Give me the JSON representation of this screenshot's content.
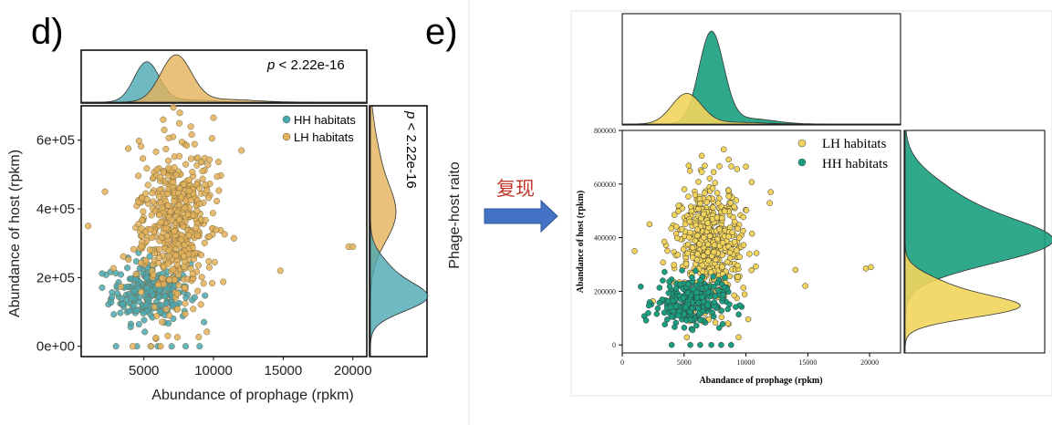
{
  "panels": {
    "d": {
      "label": "d)",
      "top_pvalue": {
        "italic": "p",
        "rest": " < 2.22e-16"
      },
      "right_pvalue": {
        "italic": "p",
        "rest": " < 2.22e-16"
      },
      "legend": [
        "HH habitats",
        "LH habitats"
      ],
      "xlabel": "Abundance of prophage (rpkm)",
      "ylabel": "Abundance of host (rpkm)",
      "xticks": [
        "5000",
        "10000",
        "15000",
        "20000"
      ],
      "yticks": [
        "0e+00",
        "2e+05",
        "4e+05",
        "6e+05"
      ],
      "side_label": "Phage-host raito"
    },
    "e": {
      "label": "e)",
      "legend": [
        "LH habitats",
        "HH habitats"
      ],
      "xlabel": "Abandance of prophage (rpkm)",
      "ylabel": "Abandance of host (rpkm)",
      "xticks": [
        "0",
        "5000",
        "10000",
        "15000",
        "20000"
      ],
      "yticks": [
        "0",
        "200000",
        "400000",
        "600000",
        "800000"
      ]
    }
  },
  "arrow": {
    "label": "复现",
    "color": "#4472c4"
  },
  "colors": {
    "d_hh": "#4aa8b3",
    "d_lh": "#e3b25a",
    "e_hh": "#1a9e7f",
    "e_lh": "#f2d45c",
    "arrow_text": "#c0392b"
  },
  "chart_data": [
    {
      "type": "scatter",
      "panel": "d",
      "xlabel": "Abundance of prophage (rpkm)",
      "ylabel": "Abundance of host (rpkm)",
      "xlim": [
        500,
        21000
      ],
      "ylim": [
        -30000,
        700000
      ],
      "series": [
        {
          "name": "HH habitats",
          "cluster": {
            "x_center": 5500,
            "x_sd": 1400,
            "y_center": 160000,
            "y_sd": 45000,
            "n": 260
          },
          "points_extra": [
            [
              3000,
              0
            ],
            [
              4500,
              0
            ],
            [
              5500,
              0
            ],
            [
              6000,
              0
            ],
            [
              7000,
              0
            ],
            [
              8000,
              0
            ],
            [
              9000,
              0
            ]
          ]
        },
        {
          "name": "LH habitats",
          "cluster": {
            "x_center": 7200,
            "x_sd": 1300,
            "y_center": 360000,
            "y_sd": 120000,
            "n": 520
          },
          "points_extra": [
            [
              19700,
              290000
            ],
            [
              20000,
              290000
            ],
            [
              14800,
              220000
            ],
            [
              1000,
              350000
            ],
            [
              2200,
              450000
            ],
            [
              12000,
              570000
            ],
            [
              10000,
              665000
            ],
            [
              5500,
              0
            ],
            [
              6200,
              0
            ],
            [
              4200,
              0
            ]
          ]
        }
      ],
      "marginal_x": {
        "HH habitats": {
          "peak": 5200,
          "sd": 900
        },
        "LH habitats": {
          "peak": 7300,
          "sd": 1100
        }
      },
      "marginal_y": {
        "HH habitats": {
          "peak": 140000,
          "sd": 40000
        },
        "LH habitats": {
          "peak": 380000,
          "sd": 80000
        }
      },
      "annotations": [
        "p < 2.22e-16"
      ]
    },
    {
      "type": "scatter",
      "panel": "e",
      "xlabel": "Abandance of prophage (rpkm)",
      "ylabel": "Abandance of host (rpkm)",
      "xlim": [
        0,
        22500
      ],
      "ylim": [
        -30000,
        800000
      ],
      "series": [
        {
          "name": "LH habitats",
          "cluster": {
            "x_center": 7000,
            "x_sd": 1400,
            "y_center": 380000,
            "y_sd": 120000,
            "n": 520
          },
          "points_extra": [
            [
              19700,
              285000
            ],
            [
              20100,
              290000
            ],
            [
              14800,
              220000
            ],
            [
              1000,
              350000
            ],
            [
              2200,
              450000
            ],
            [
              12000,
              570000
            ],
            [
              10000,
              665000
            ],
            [
              14000,
              280000
            ]
          ]
        },
        {
          "name": "HH habitats",
          "cluster": {
            "x_center": 5500,
            "x_sd": 1400,
            "y_center": 160000,
            "y_sd": 45000,
            "n": 260
          },
          "points_extra": [
            [
              4000,
              0
            ],
            [
              5500,
              0
            ],
            [
              6300,
              0
            ],
            [
              7200,
              0
            ],
            [
              8000,
              0
            ],
            [
              8800,
              0
            ]
          ]
        }
      ],
      "marginal_x": {
        "HH habitats": {
          "peak": 7200,
          "sd": 1000
        },
        "LH habitats": {
          "peak": 5200,
          "sd": 1200
        }
      },
      "marginal_y": {
        "HH habitats": {
          "peak": 380000,
          "sd": 80000
        },
        "LH habitats": {
          "peak": 140000,
          "sd": 40000
        }
      }
    }
  ]
}
